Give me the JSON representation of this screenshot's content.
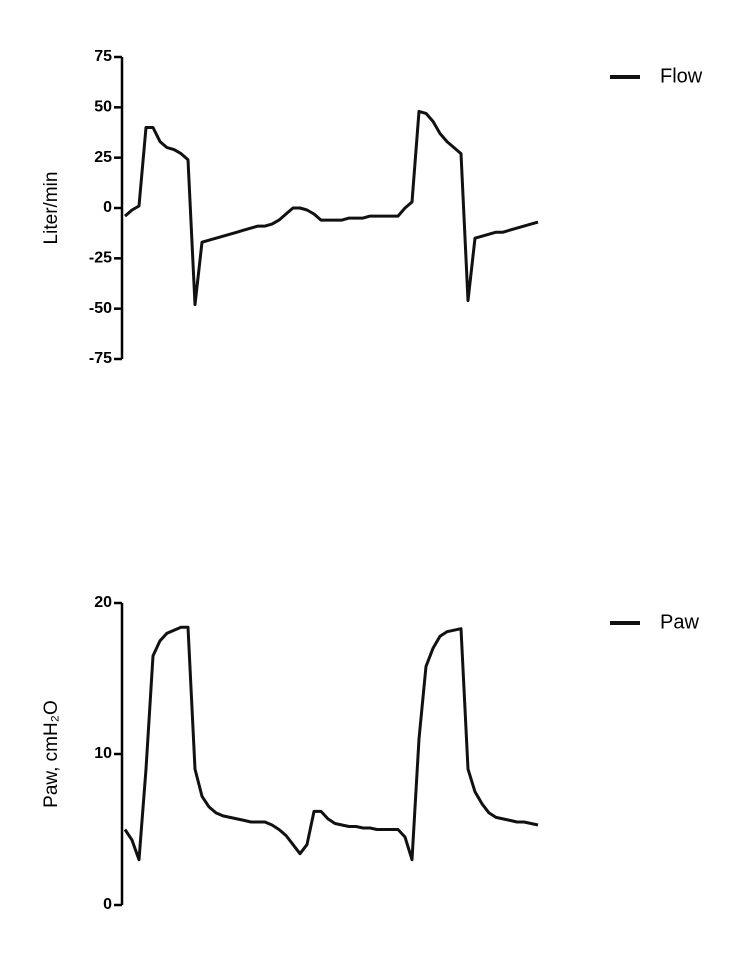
{
  "chart_data": [
    {
      "type": "line",
      "ylabel": "Liter/min",
      "ylim": [
        -75,
        75
      ],
      "yticks": [
        75,
        50,
        25,
        0,
        -25,
        -50,
        -75
      ],
      "legend": "upper right",
      "series": [
        {
          "name": "Flow",
          "color": "#111111",
          "values": [
            -4,
            -1,
            1,
            40,
            40,
            33,
            30,
            29,
            27,
            24,
            -48,
            -17,
            -16,
            -15,
            -14,
            -13,
            -12,
            -11,
            -10,
            -9,
            -9,
            -8,
            -6,
            -3,
            0,
            0,
            -1,
            -3,
            -6,
            -6,
            -6,
            -6,
            -5,
            -5,
            -5,
            -4,
            -4,
            -4,
            -4,
            -4,
            0,
            3,
            48,
            47,
            43,
            37,
            33,
            30,
            27,
            -46,
            -15,
            -14,
            -13,
            -12,
            -12,
            -11,
            -10,
            -9,
            -8,
            -7
          ]
        }
      ]
    },
    {
      "type": "line",
      "ylabel": "Paw, cmH₂O",
      "ylim": [
        0,
        20
      ],
      "yticks": [
        0,
        10,
        20
      ],
      "legend": "upper right",
      "series": [
        {
          "name": "Paw",
          "color": "#111111",
          "values": [
            5,
            4.3,
            3,
            9,
            16.5,
            17.5,
            18,
            18.2,
            18.4,
            18.4,
            9,
            7.2,
            6.5,
            6.1,
            5.9,
            5.8,
            5.7,
            5.6,
            5.5,
            5.5,
            5.5,
            5.3,
            5,
            4.6,
            4,
            3.4,
            4,
            6.2,
            6.2,
            5.7,
            5.4,
            5.3,
            5.2,
            5.2,
            5.1,
            5.1,
            5,
            5,
            5,
            5,
            4.5,
            3,
            11,
            15.8,
            17,
            17.8,
            18.1,
            18.2,
            18.3,
            9,
            7.5,
            6.7,
            6.1,
            5.8,
            5.7,
            5.6,
            5.5,
            5.5,
            5.4,
            5.3
          ]
        }
      ]
    }
  ]
}
